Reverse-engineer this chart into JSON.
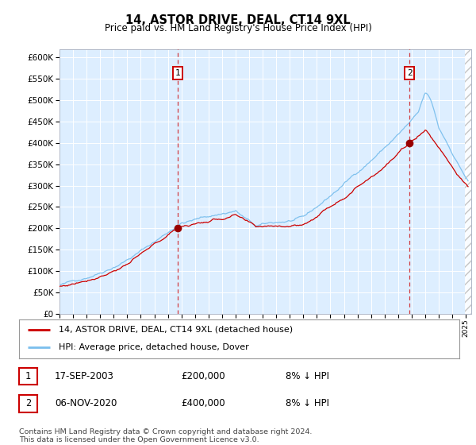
{
  "title": "14, ASTOR DRIVE, DEAL, CT14 9XL",
  "subtitle": "Price paid vs. HM Land Registry's House Price Index (HPI)",
  "ylim": [
    0,
    620000
  ],
  "yticks": [
    0,
    50000,
    100000,
    150000,
    200000,
    250000,
    300000,
    350000,
    400000,
    450000,
    500000,
    550000,
    600000
  ],
  "hpi_color": "#7bbfed",
  "price_color": "#cc0000",
  "bg_color": "#ddeeff",
  "transaction1_x": 2003.72,
  "transaction1_price": 200000,
  "transaction2_x": 2020.85,
  "transaction2_price": 400000,
  "legend_line1": "14, ASTOR DRIVE, DEAL, CT14 9XL (detached house)",
  "legend_line2": "HPI: Average price, detached house, Dover",
  "footnote": "Contains HM Land Registry data © Crown copyright and database right 2024.\nThis data is licensed under the Open Government Licence v3.0.",
  "table_row1_date": "17-SEP-2003",
  "table_row1_price": "£200,000",
  "table_row1_note": "8% ↓ HPI",
  "table_row2_date": "06-NOV-2020",
  "table_row2_price": "£400,000",
  "table_row2_note": "8% ↓ HPI"
}
